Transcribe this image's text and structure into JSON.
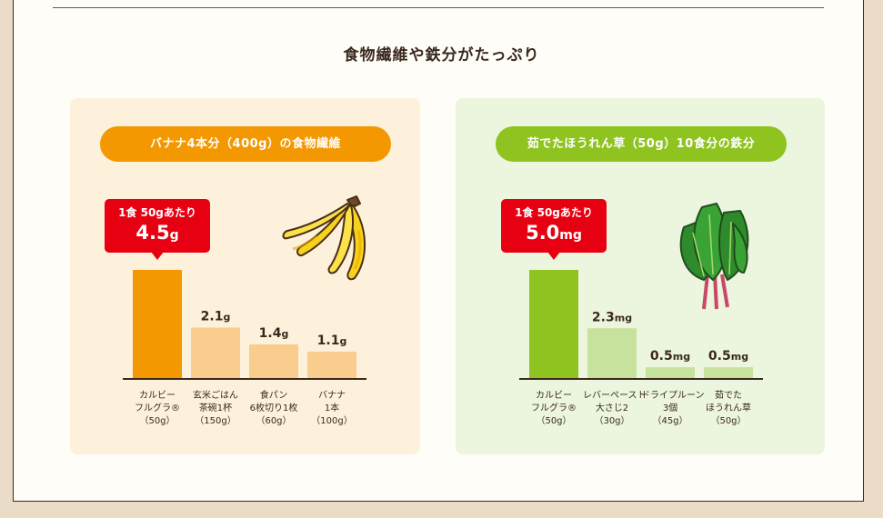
{
  "heading": "食物繊維や鉄分がたっぷり",
  "chart_data": [
    {
      "type": "bar",
      "title": "バナナ4本分（400g）の食物繊維",
      "callout": {
        "text": "1食 50gあたり",
        "value_number": "4.5",
        "value_unit": "g"
      },
      "categories": [
        [
          "カルビー",
          "フルグラ®",
          "（50g）"
        ],
        [
          "玄米ごはん",
          "茶碗1杯",
          "（150g）"
        ],
        [
          "食パン",
          "6枚切り1枚",
          "（60g）"
        ],
        [
          "バナナ",
          "1本",
          "（100g）"
        ]
      ],
      "values": [
        4.5,
        2.1,
        1.4,
        1.1
      ],
      "value_labels": [
        {
          "number": "4.5",
          "unit": "g"
        },
        {
          "number": "2.1",
          "unit": "g"
        },
        {
          "number": "1.4",
          "unit": "g"
        },
        {
          "number": "1.1",
          "unit": "g"
        }
      ],
      "highlight_color": "#f39800",
      "bar_color": "#f9cd8e",
      "ylim": [
        0,
        4.5
      ]
    },
    {
      "type": "bar",
      "title": "茹でたほうれん草（50g）10食分の鉄分",
      "callout": {
        "text": "1食 50gあたり",
        "value_number": "5.0",
        "value_unit": "mg"
      },
      "categories": [
        [
          "カルビー",
          "フルグラ®",
          "（50g）"
        ],
        [
          "レバーペースト",
          "大さじ2",
          "（30g）"
        ],
        [
          "ドライプルーン",
          "3個",
          "（45g）"
        ],
        [
          "茹でた",
          "ほうれん草",
          "（50g）"
        ]
      ],
      "values": [
        5.0,
        2.3,
        0.5,
        0.5
      ],
      "value_labels": [
        {
          "number": "5.0",
          "unit": "mg"
        },
        {
          "number": "2.3",
          "unit": "mg"
        },
        {
          "number": "0.5",
          "unit": "mg"
        },
        {
          "number": "0.5",
          "unit": "mg"
        }
      ],
      "highlight_color": "#8fc31f",
      "bar_color": "#c6e29c",
      "ylim": [
        0,
        5.0
      ]
    }
  ],
  "colors": {
    "accent_red": "#e60012",
    "text": "#3a2a1e"
  },
  "icons": [
    "banana-icon",
    "spinach-icon"
  ]
}
